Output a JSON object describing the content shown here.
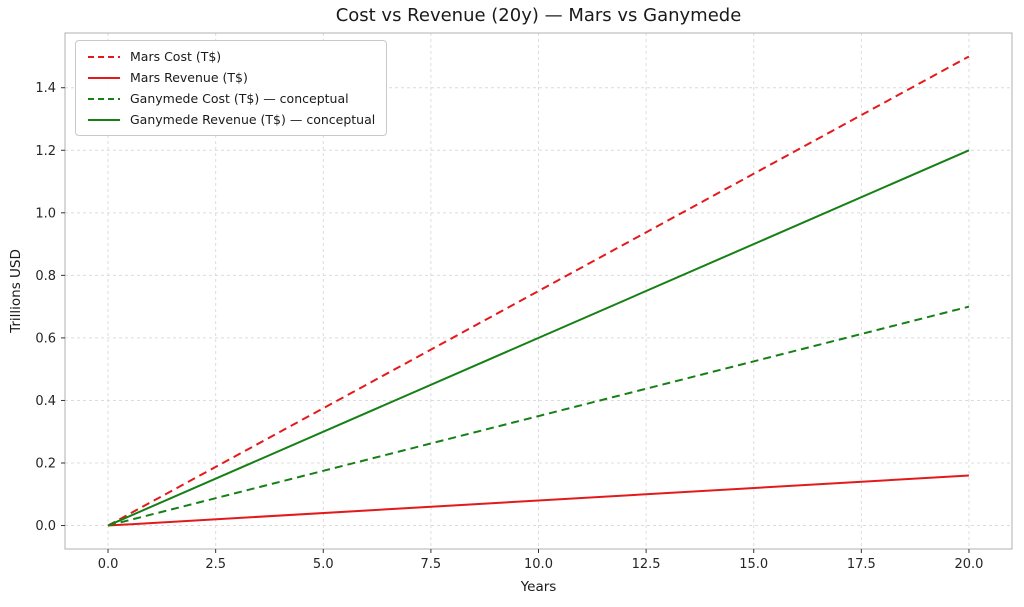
{
  "figure": {
    "background": "#ffffff",
    "spine_color": "#b0b0b0",
    "grid_color": "#dcdcdc",
    "tick_color": "#333333",
    "text_color": "#262626"
  },
  "chart_data": {
    "type": "line",
    "title": "Cost vs Revenue (20y) — Mars vs Ganymede",
    "xlabel": "Years",
    "ylabel": "Trillions USD",
    "xlim": [
      -1,
      21
    ],
    "ylim": [
      -0.075,
      1.575
    ],
    "xticks": [
      0,
      2.5,
      5,
      7.5,
      10,
      12.5,
      15,
      17.5,
      20
    ],
    "xtick_labels": [
      "0.0",
      "2.5",
      "5.0",
      "7.5",
      "10.0",
      "12.5",
      "15.0",
      "17.5",
      "20.0"
    ],
    "yticks": [
      0,
      0.2,
      0.4,
      0.6,
      0.8,
      1.0,
      1.2,
      1.4
    ],
    "ytick_labels": [
      "0.0",
      "0.2",
      "0.4",
      "0.6",
      "0.8",
      "1.0",
      "1.2",
      "1.4"
    ],
    "grid": true,
    "legend_position": "upper left",
    "series": [
      {
        "name": "Mars Cost (T$)",
        "color": "#e31a1c",
        "style": "dashed",
        "x": [
          0,
          20
        ],
        "values": [
          0,
          1.5
        ]
      },
      {
        "name": "Mars Revenue (T$)",
        "color": "#e31a1c",
        "style": "solid",
        "x": [
          0,
          20
        ],
        "values": [
          0,
          0.16
        ]
      },
      {
        "name": "Ganymede Cost (T$) — conceptual",
        "color": "#168016",
        "style": "dashed",
        "x": [
          0,
          20
        ],
        "values": [
          0,
          0.7
        ]
      },
      {
        "name": "Ganymede Revenue (T$) — conceptual",
        "color": "#168016",
        "style": "solid",
        "x": [
          0,
          20
        ],
        "values": [
          0,
          1.2
        ]
      }
    ]
  }
}
